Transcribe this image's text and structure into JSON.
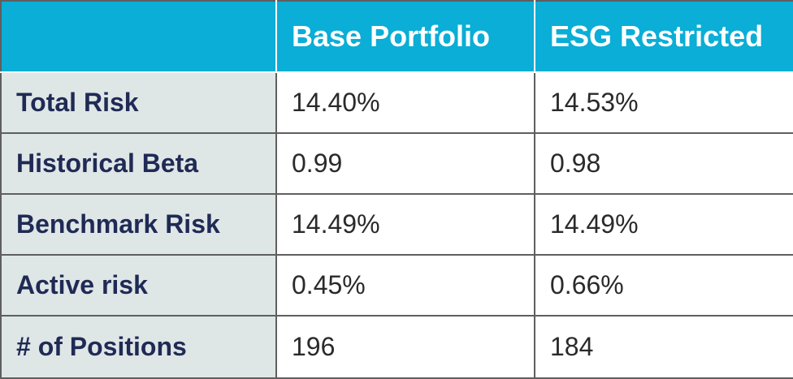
{
  "chart_data": {
    "type": "table",
    "columns": [
      "",
      "Base Portfolio",
      "ESG Restricted"
    ],
    "rows": [
      {
        "label": "Total Risk",
        "values": [
          "14.40%",
          "14.53%"
        ]
      },
      {
        "label": "Historical Beta",
        "values": [
          "0.99",
          "0.98"
        ]
      },
      {
        "label": "Benchmark Risk",
        "values": [
          "14.49%",
          "14.49%"
        ]
      },
      {
        "label": "Active risk",
        "values": [
          "0.45%",
          "0.66%"
        ]
      },
      {
        "label": "# of Positions",
        "values": [
          "196",
          "184"
        ]
      }
    ]
  },
  "colors": {
    "header_bg": "#0aaed6",
    "header_text": "#ffffff",
    "label_bg": "#dfe6e6",
    "label_text": "#1f2a55",
    "cell_text": "#2a2a2a",
    "grid": "#5f5f5f"
  }
}
